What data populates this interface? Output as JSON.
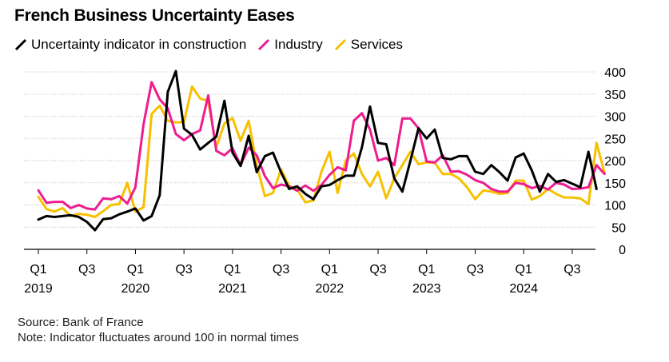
{
  "header": {
    "title": "French Business Uncertainty Eases"
  },
  "legend": [
    {
      "label": "Uncertainty indicator in construction",
      "color": "#000000"
    },
    {
      "label": "Industry",
      "color": "#ee1d8f"
    },
    {
      "label": "Services",
      "color": "#f8c000"
    }
  ],
  "footer": {
    "source": "Source: Bank of France",
    "note": "Note: Indicator fluctuates around 100 in normal times"
  },
  "chart_data": {
    "type": "line",
    "x_unit": "month",
    "x_start": "2019-01",
    "ylim": [
      0,
      400
    ],
    "yticks": [
      0,
      50,
      100,
      150,
      200,
      250,
      300,
      350,
      400
    ],
    "y_axis_side": "right",
    "grid": "horizontal",
    "x_tick_labels": [
      {
        "quarter": "Q1",
        "year": "2019"
      },
      {
        "quarter": "Q3",
        "year": ""
      },
      {
        "quarter": "Q1",
        "year": "2020"
      },
      {
        "quarter": "Q3",
        "year": ""
      },
      {
        "quarter": "Q1",
        "year": "2021"
      },
      {
        "quarter": "Q3",
        "year": ""
      },
      {
        "quarter": "Q1",
        "year": "2022"
      },
      {
        "quarter": "Q3",
        "year": ""
      },
      {
        "quarter": "Q1",
        "year": "2023"
      },
      {
        "quarter": "Q3",
        "year": ""
      },
      {
        "quarter": "Q1",
        "year": "2024"
      },
      {
        "quarter": "Q3",
        "year": ""
      }
    ],
    "series": [
      {
        "name": "Uncertainty indicator in construction",
        "color": "#000000",
        "values": [
          67,
          75,
          73,
          75,
          77,
          73,
          62,
          43,
          68,
          70,
          79,
          85,
          92,
          65,
          75,
          122,
          355,
          402,
          272,
          258,
          225,
          240,
          254,
          335,
          218,
          188,
          256,
          174,
          210,
          218,
          174,
          136,
          142,
          125,
          113,
          142,
          145,
          156,
          166,
          166,
          230,
          322,
          240,
          237,
          160,
          130,
          200,
          273,
          250,
          270,
          206,
          203,
          210,
          210,
          175,
          170,
          190,
          174,
          155,
          207,
          216,
          178,
          130,
          170,
          152,
          156,
          148,
          140,
          220,
          136
        ]
      },
      {
        "name": "Industry",
        "color": "#ee1d8f",
        "values": [
          133,
          105,
          107,
          107,
          93,
          100,
          92,
          90,
          115,
          113,
          120,
          103,
          140,
          282,
          377,
          338,
          318,
          260,
          246,
          260,
          268,
          347,
          222,
          212,
          228,
          190,
          229,
          212,
          165,
          138,
          146,
          142,
          132,
          144,
          132,
          145,
          168,
          185,
          178,
          290,
          307,
          270,
          200,
          206,
          190,
          295,
          295,
          273,
          198,
          196,
          212,
          175,
          176,
          168,
          156,
          150,
          136,
          130,
          130,
          150,
          147,
          138,
          143,
          135,
          150,
          146,
          136,
          137,
          140,
          190,
          170
        ]
      },
      {
        "name": "Services",
        "color": "#f8c000",
        "values": [
          118,
          91,
          85,
          93,
          75,
          80,
          78,
          73,
          86,
          100,
          102,
          150,
          85,
          95,
          305,
          324,
          290,
          286,
          287,
          367,
          340,
          335,
          230,
          284,
          296,
          245,
          290,
          190,
          120,
          127,
          180,
          143,
          135,
          106,
          110,
          175,
          220,
          127,
          200,
          216,
          170,
          142,
          175,
          115,
          160,
          190,
          220,
          192,
          196,
          195,
          170,
          170,
          160,
          140,
          113,
          133,
          130,
          125,
          127,
          155,
          155,
          112,
          120,
          136,
          125,
          117,
          117,
          115,
          102,
          240,
          172
        ]
      }
    ]
  }
}
